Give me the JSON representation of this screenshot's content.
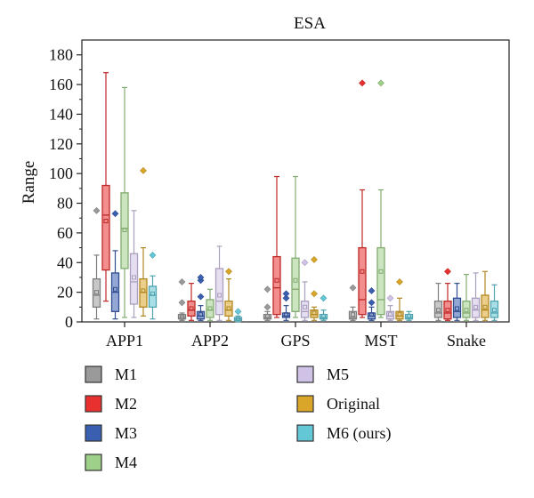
{
  "chart_data": {
    "type": "box",
    "title": "ESA",
    "xlabel": "",
    "ylabel": "Range",
    "ylim": [
      0,
      190
    ],
    "yticks": [
      0,
      20,
      40,
      60,
      80,
      100,
      120,
      140,
      160,
      180
    ],
    "categories": [
      "APP1",
      "APP2",
      "GPS",
      "MST",
      "Snake"
    ],
    "legend_position": "bottom",
    "series": [
      {
        "name": "M1",
        "color": "#9a9a9a",
        "boxes": [
          {
            "min": 2,
            "q1": 10,
            "median": 18,
            "q3": 29,
            "max": 45,
            "mean": 20,
            "outliers": [
              75
            ]
          },
          {
            "min": 1,
            "q1": 2,
            "median": 3,
            "q3": 5,
            "max": 6,
            "mean": 3,
            "outliers": [
              13,
              27
            ]
          },
          {
            "min": 1,
            "q1": 2,
            "median": 3,
            "q3": 5,
            "max": 7,
            "mean": 4,
            "outliers": [
              10,
              22
            ]
          },
          {
            "min": 1,
            "q1": 2,
            "median": 3,
            "q3": 7,
            "max": 10,
            "mean": 5,
            "outliers": [
              23
            ]
          },
          {
            "min": 1,
            "q1": 3,
            "median": 6,
            "q3": 14,
            "max": 26,
            "mean": 8,
            "outliers": []
          }
        ]
      },
      {
        "name": "M2",
        "color": "#e8312f",
        "boxes": [
          {
            "min": 14,
            "q1": 35,
            "median": 72,
            "q3": 92,
            "max": 168,
            "mean": 68,
            "outliers": []
          },
          {
            "min": 1,
            "q1": 4,
            "median": 8,
            "q3": 14,
            "max": 26,
            "mean": 9,
            "outliers": []
          },
          {
            "min": 3,
            "q1": 5,
            "median": 23,
            "q3": 44,
            "max": 98,
            "mean": 28,
            "outliers": []
          },
          {
            "min": 3,
            "q1": 5,
            "median": 15,
            "q3": 50,
            "max": 89,
            "mean": 34,
            "outliers": [
              161
            ]
          },
          {
            "min": 1,
            "q1": 2,
            "median": 6,
            "q3": 14,
            "max": 26,
            "mean": 8,
            "outliers": [
              34
            ]
          }
        ]
      },
      {
        "name": "M3",
        "color": "#3a5fb0",
        "boxes": [
          {
            "min": 2,
            "q1": 7,
            "median": 20,
            "q3": 33,
            "max": 48,
            "mean": 22,
            "outliers": [
              73
            ]
          },
          {
            "min": 1,
            "q1": 2,
            "median": 4,
            "q3": 7,
            "max": 11,
            "mean": 5,
            "outliers": [
              17,
              28,
              30
            ]
          },
          {
            "min": 1,
            "q1": 3,
            "median": 4,
            "q3": 6,
            "max": 11,
            "mean": 5,
            "outliers": [
              16,
              19
            ]
          },
          {
            "min": 1,
            "q1": 2,
            "median": 4,
            "q3": 6,
            "max": 10,
            "mean": 5,
            "outliers": [
              13,
              21
            ]
          },
          {
            "min": 1,
            "q1": 3,
            "median": 7,
            "q3": 16,
            "max": 26,
            "mean": 9,
            "outliers": []
          }
        ]
      },
      {
        "name": "M4",
        "color": "#9fd08a",
        "boxes": [
          {
            "min": 3,
            "q1": 36,
            "median": 63,
            "q3": 87,
            "max": 158,
            "mean": 62,
            "outliers": []
          },
          {
            "min": 1,
            "q1": 3,
            "median": 8,
            "q3": 15,
            "max": 22,
            "mean": 9,
            "outliers": []
          },
          {
            "min": 3,
            "q1": 7,
            "median": 22,
            "q3": 43,
            "max": 98,
            "mean": 28,
            "outliers": []
          },
          {
            "min": 3,
            "q1": 5,
            "median": 15,
            "q3": 50,
            "max": 89,
            "mean": 34,
            "outliers": [
              161
            ]
          },
          {
            "min": 1,
            "q1": 3,
            "median": 6,
            "q3": 14,
            "max": 32,
            "mean": 8,
            "outliers": []
          }
        ]
      },
      {
        "name": "M5",
        "color": "#cfc2e6",
        "boxes": [
          {
            "min": 3,
            "q1": 12,
            "median": 27,
            "q3": 46,
            "max": 75,
            "mean": 30,
            "outliers": []
          },
          {
            "min": 1,
            "q1": 5,
            "median": 14,
            "q3": 36,
            "max": 51,
            "mean": 18,
            "outliers": []
          },
          {
            "min": 1,
            "q1": 3,
            "median": 7,
            "q3": 14,
            "max": 27,
            "mean": 10,
            "outliers": [
              40
            ]
          },
          {
            "min": 1,
            "q1": 2,
            "median": 4,
            "q3": 7,
            "max": 11,
            "mean": 5,
            "outliers": [
              16
            ]
          },
          {
            "min": 1,
            "q1": 3,
            "median": 8,
            "q3": 16,
            "max": 33,
            "mean": 10,
            "outliers": []
          }
        ]
      },
      {
        "name": "Original",
        "color": "#d9a62a",
        "boxes": [
          {
            "min": 4,
            "q1": 10,
            "median": 20,
            "q3": 29,
            "max": 50,
            "mean": 21,
            "outliers": [
              102
            ]
          },
          {
            "min": 1,
            "q1": 4,
            "median": 8,
            "q3": 14,
            "max": 29,
            "mean": 9,
            "outliers": [
              34
            ]
          },
          {
            "min": 1,
            "q1": 3,
            "median": 5,
            "q3": 8,
            "max": 10,
            "mean": 6,
            "outliers": [
              19,
              42
            ]
          },
          {
            "min": 1,
            "q1": 2,
            "median": 4,
            "q3": 7,
            "max": 16,
            "mean": 5,
            "outliers": [
              27
            ]
          },
          {
            "min": 1,
            "q1": 3,
            "median": 8,
            "q3": 18,
            "max": 34,
            "mean": 10,
            "outliers": []
          }
        ]
      },
      {
        "name": "M6 (ours)",
        "color": "#63c7d6",
        "boxes": [
          {
            "min": 2,
            "q1": 10,
            "median": 18,
            "q3": 24,
            "max": 31,
            "mean": 19,
            "outliers": [
              45
            ]
          },
          {
            "min": 0,
            "q1": 1,
            "median": 2,
            "q3": 3,
            "max": 4,
            "mean": 2,
            "outliers": [
              7
            ]
          },
          {
            "min": 1,
            "q1": 2,
            "median": 3,
            "q3": 5,
            "max": 8,
            "mean": 4,
            "outliers": [
              16
            ]
          },
          {
            "min": 1,
            "q1": 2,
            "median": 3,
            "q3": 5,
            "max": 7,
            "mean": 4,
            "outliers": []
          },
          {
            "min": 1,
            "q1": 3,
            "median": 6,
            "q3": 14,
            "max": 25,
            "mean": 8,
            "outliers": []
          }
        ]
      }
    ]
  }
}
